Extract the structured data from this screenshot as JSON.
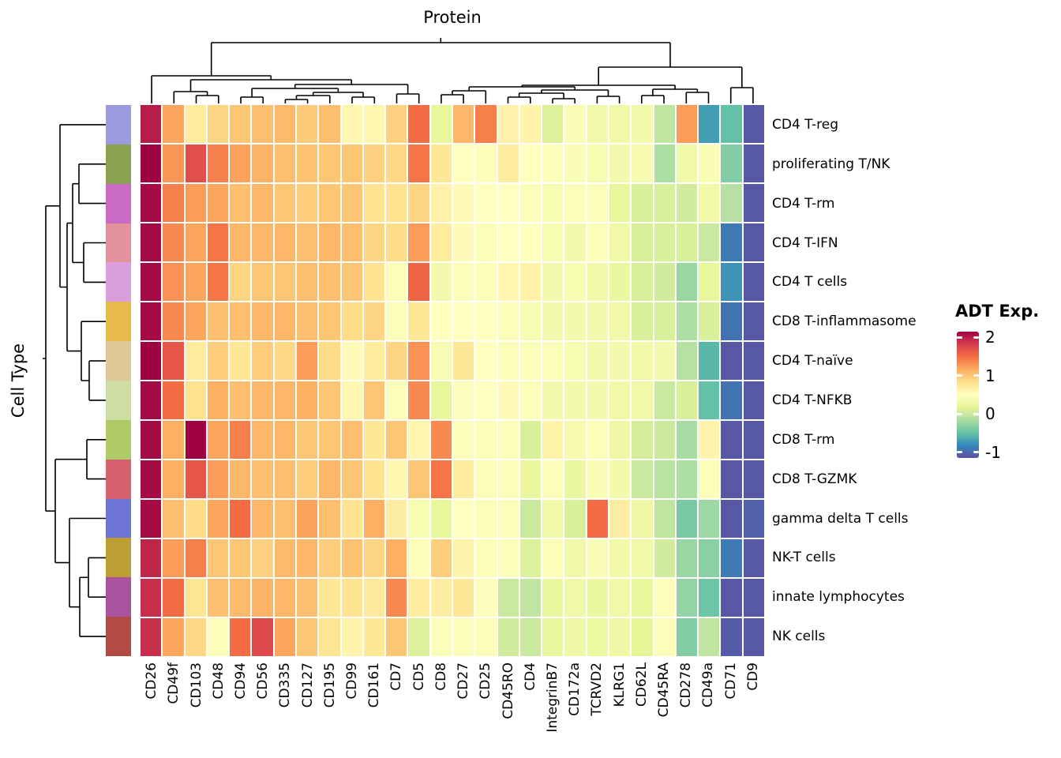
{
  "figure": {
    "title": "Protein",
    "row_axis_title": "Cell Type"
  },
  "legend": {
    "title": "ADT Exp.",
    "tick_labels": [
      "2",
      "1",
      "0",
      "-1"
    ],
    "tick_values": [
      2,
      1,
      0,
      -1
    ]
  },
  "chart_data": {
    "type": "heatmap",
    "title": "Protein",
    "row_axis_label": "Cell Type",
    "legend_title": "ADT Exp.",
    "columns": [
      "CD26",
      "CD49f",
      "CD103",
      "CD48",
      "CD94",
      "CD56",
      "CD335",
      "CD127",
      "CD195",
      "CD99",
      "CD161",
      "CD7",
      "CD5",
      "CD8",
      "CD27",
      "CD25",
      "CD45RO",
      "CD4",
      "IntegrinB7",
      "CD172a",
      "TCRVD2",
      "KLRG1",
      "CD62L",
      "CD45RA",
      "CD278",
      "CD49a",
      "CD71",
      "CD9"
    ],
    "rows": [
      "CD4 T-reg",
      "proliferating T/NK",
      "CD4 T-rm",
      "CD4 T-IFN",
      "CD4 T cells",
      "CD8 T-inflammasome",
      "CD4 T-naïve",
      "CD4 T-NFKB",
      "CD8 T-rm",
      "CD8 T-GZMK",
      "gamma delta T cells",
      "NK-T cells",
      "innate lymphocytes",
      "NK cells"
    ],
    "row_annotation_colors": [
      "#9B9BDE",
      "#8BA152",
      "#C96BC4",
      "#E2929A",
      "#D89FDC",
      "#E7BA4E",
      "#E0C795",
      "#CEDDA4",
      "#AFCB67",
      "#D56170",
      "#6D74D5",
      "#BC9E34",
      "#A8539F",
      "#B24B46"
    ],
    "values": [
      [
        2.0,
        1.2,
        0.7,
        0.9,
        1.0,
        1.05,
        1.08,
        0.97,
        1.05,
        0.6,
        0.6,
        0.92,
        1.5,
        0.2,
        1.1,
        1.4,
        0.63,
        0.62,
        0.12,
        0.42,
        0.32,
        0.3,
        0.33,
        -0.05,
        1.25,
        -0.7,
        -0.5,
        -1.1
      ],
      [
        2.15,
        1.28,
        1.7,
        1.4,
        1.22,
        1.12,
        1.05,
        1.02,
        1.0,
        1.0,
        0.92,
        0.88,
        1.45,
        0.75,
        0.5,
        0.52,
        0.7,
        0.5,
        0.46,
        0.42,
        0.4,
        0.35,
        0.38,
        -0.15,
        0.3,
        0.42,
        -0.35,
        -1.1
      ],
      [
        2.1,
        1.4,
        1.25,
        1.2,
        1.05,
        1.1,
        1.0,
        0.95,
        1.0,
        1.0,
        0.8,
        0.8,
        0.9,
        0.65,
        0.55,
        0.5,
        0.5,
        0.45,
        0.4,
        0.45,
        0.45,
        0.2,
        0.1,
        0.1,
        0.05,
        0.3,
        -0.1,
        -1.1
      ],
      [
        2.1,
        1.35,
        1.2,
        1.45,
        1.1,
        1.1,
        1.1,
        1.05,
        1.1,
        1.05,
        0.9,
        0.85,
        1.25,
        0.7,
        0.55,
        0.45,
        0.5,
        0.5,
        0.4,
        0.35,
        0.45,
        0.3,
        0.1,
        0.1,
        0.1,
        0.0,
        -0.9,
        -1.1
      ],
      [
        2.1,
        1.3,
        1.2,
        1.45,
        0.9,
        1.0,
        1.0,
        1.05,
        1.05,
        1.0,
        0.8,
        0.45,
        1.55,
        0.35,
        0.45,
        0.45,
        0.6,
        0.65,
        0.35,
        0.4,
        0.3,
        0.25,
        0.1,
        0.05,
        -0.25,
        0.2,
        -0.75,
        -1.1
      ],
      [
        2.1,
        1.35,
        1.2,
        1.05,
        1.05,
        1.1,
        1.1,
        1.05,
        1.0,
        0.85,
        0.9,
        0.45,
        0.75,
        0.5,
        0.5,
        0.5,
        0.45,
        0.4,
        0.35,
        0.35,
        0.35,
        0.3,
        0.1,
        0.1,
        -0.15,
        0.1,
        -0.95,
        -1.1
      ],
      [
        2.15,
        1.65,
        0.7,
        0.95,
        0.75,
        0.95,
        0.87,
        1.25,
        0.85,
        0.55,
        0.7,
        0.9,
        1.3,
        0.4,
        0.75,
        0.5,
        0.45,
        0.45,
        0.45,
        0.4,
        0.35,
        0.35,
        0.3,
        0.35,
        -0.1,
        -0.55,
        -1.1,
        -1.1
      ],
      [
        2.1,
        1.5,
        0.8,
        1.15,
        1.05,
        1.1,
        1.1,
        1.15,
        1.0,
        0.6,
        1.0,
        0.45,
        1.35,
        0.2,
        0.48,
        0.5,
        0.55,
        0.45,
        0.35,
        0.35,
        0.35,
        0.3,
        0.3,
        0.0,
        0.1,
        -0.5,
        -0.95,
        -1.1
      ],
      [
        2.1,
        1.15,
        2.15,
        1.2,
        1.4,
        1.1,
        1.1,
        1.0,
        1.0,
        1.05,
        0.75,
        1.0,
        0.6,
        1.35,
        0.45,
        0.45,
        0.45,
        0.1,
        0.65,
        0.38,
        0.45,
        0.28,
        0.08,
        0.02,
        -0.18,
        0.62,
        -1.1,
        -1.1
      ],
      [
        2.1,
        1.15,
        1.65,
        1.25,
        1.1,
        1.05,
        1.05,
        0.95,
        1.1,
        1.0,
        0.8,
        0.6,
        1.0,
        1.45,
        0.7,
        0.45,
        0.45,
        0.22,
        0.45,
        0.25,
        0.42,
        0.33,
        0.0,
        -0.08,
        -0.15,
        0.45,
        -1.1,
        -1.1
      ],
      [
        2.1,
        1.05,
        0.85,
        1.2,
        1.5,
        1.1,
        1.05,
        1.22,
        1.05,
        0.8,
        1.15,
        0.68,
        0.4,
        0.2,
        0.5,
        0.45,
        0.45,
        0.0,
        0.3,
        0.1,
        1.5,
        0.68,
        0.28,
        -0.05,
        -0.4,
        -0.22,
        -1.1,
        -1.05
      ],
      [
        1.95,
        1.25,
        1.4,
        1.0,
        1.0,
        0.92,
        1.08,
        1.1,
        0.95,
        1.02,
        0.9,
        1.15,
        0.45,
        0.95,
        0.62,
        0.45,
        0.45,
        0.12,
        0.45,
        0.3,
        0.42,
        0.32,
        0.3,
        0.05,
        -0.25,
        -0.32,
        -0.9,
        -1.1
      ],
      [
        1.9,
        1.5,
        0.78,
        1.05,
        1.08,
        1.12,
        1.1,
        1.05,
        0.75,
        0.8,
        0.72,
        1.35,
        0.7,
        0.68,
        0.75,
        0.48,
        0.0,
        -0.05,
        0.22,
        0.3,
        0.25,
        0.3,
        0.2,
        0.45,
        -0.27,
        -0.45,
        -1.1,
        -1.1
      ],
      [
        1.9,
        1.2,
        0.88,
        0.45,
        1.5,
        1.75,
        1.2,
        1.0,
        0.78,
        0.62,
        0.75,
        1.0,
        0.12,
        0.45,
        0.45,
        0.45,
        0.05,
        0.0,
        0.25,
        0.28,
        0.26,
        0.28,
        0.18,
        0.45,
        -0.35,
        -0.05,
        -1.08,
        -1.1
      ]
    ],
    "color_scale": {
      "palette_low_to_high": [
        "#5E4FA2",
        "#3288BD",
        "#66C2A5",
        "#ABDDA4",
        "#E6F598",
        "#FFFFBF",
        "#FEE08B",
        "#FDAE61",
        "#F46D43",
        "#D53E4F",
        "#9E0142"
      ],
      "domain": [
        -1.15,
        2.15
      ],
      "legend_ticks": [
        2,
        1,
        0,
        -1
      ]
    },
    "layout_hints": {
      "column_dendrogram": "top",
      "row_dendrogram": "left",
      "row_annotation": "left-strip",
      "row_labels": "right",
      "column_labels": "bottom-rotated-90",
      "legend_position": "right",
      "grid": "white gaps between cells"
    }
  }
}
